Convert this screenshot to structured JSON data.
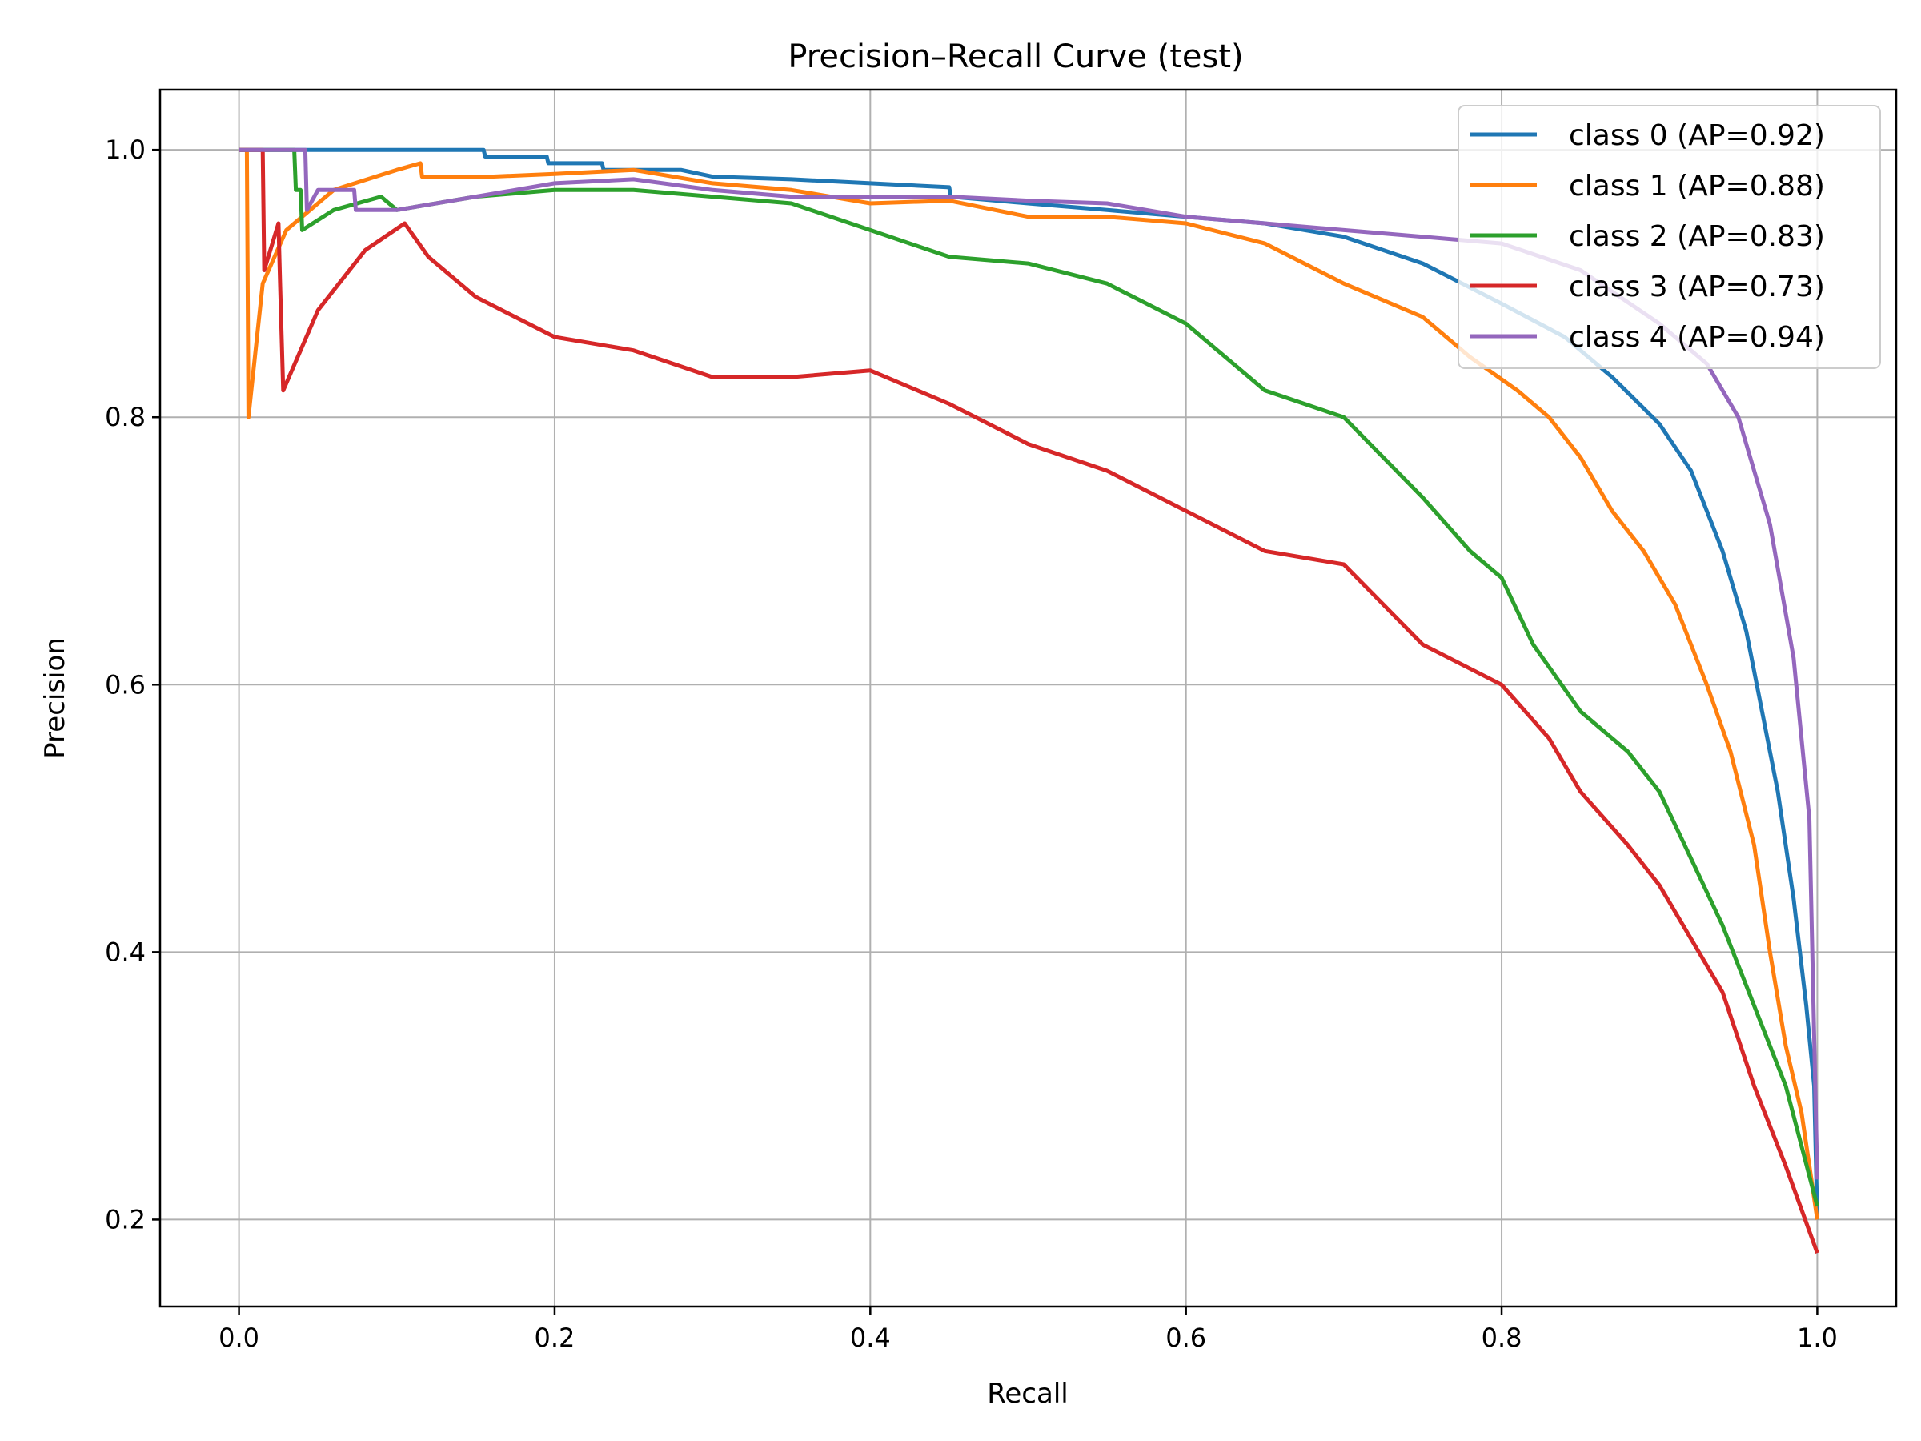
{
  "chart_data": {
    "type": "line",
    "title": "Precision–Recall Curve (test)",
    "xlabel": "Recall",
    "ylabel": "Precision",
    "xlim": [
      -0.05,
      1.05
    ],
    "ylim": [
      0.135,
      1.045
    ],
    "xticks": [
      0.0,
      0.2,
      0.4,
      0.6,
      0.8,
      1.0
    ],
    "xtick_labels": [
      "0.0",
      "0.2",
      "0.4",
      "0.6",
      "0.8",
      "1.0"
    ],
    "yticks": [
      0.2,
      0.4,
      0.6,
      0.8,
      1.0
    ],
    "ytick_labels": [
      "0.2",
      "0.4",
      "0.6",
      "0.8",
      "1.0"
    ],
    "grid": true,
    "legend_position": "top-right",
    "series": [
      {
        "name": "class 0 (AP=0.92)",
        "color": "#1f77b4",
        "points": [
          [
            0.0,
            1.0
          ],
          [
            0.05,
            1.0
          ],
          [
            0.1,
            1.0
          ],
          [
            0.155,
            1.0
          ],
          [
            0.156,
            0.995
          ],
          [
            0.195,
            0.995
          ],
          [
            0.196,
            0.99
          ],
          [
            0.23,
            0.99
          ],
          [
            0.231,
            0.985
          ],
          [
            0.28,
            0.985
          ],
          [
            0.3,
            0.98
          ],
          [
            0.35,
            0.978
          ],
          [
            0.4,
            0.975
          ],
          [
            0.45,
            0.972
          ],
          [
            0.451,
            0.965
          ],
          [
            0.5,
            0.96
          ],
          [
            0.55,
            0.955
          ],
          [
            0.6,
            0.95
          ],
          [
            0.65,
            0.945
          ],
          [
            0.7,
            0.935
          ],
          [
            0.75,
            0.915
          ],
          [
            0.8,
            0.885
          ],
          [
            0.84,
            0.86
          ],
          [
            0.87,
            0.83
          ],
          [
            0.9,
            0.795
          ],
          [
            0.92,
            0.76
          ],
          [
            0.94,
            0.7
          ],
          [
            0.955,
            0.64
          ],
          [
            0.965,
            0.58
          ],
          [
            0.975,
            0.52
          ],
          [
            0.985,
            0.44
          ],
          [
            0.993,
            0.36
          ],
          [
            0.998,
            0.3
          ],
          [
            1.0,
            0.2
          ]
        ]
      },
      {
        "name": "class 1 (AP=0.88)",
        "color": "#ff7f0e",
        "points": [
          [
            0.0,
            1.0
          ],
          [
            0.005,
            1.0
          ],
          [
            0.006,
            0.8
          ],
          [
            0.015,
            0.9
          ],
          [
            0.03,
            0.94
          ],
          [
            0.06,
            0.97
          ],
          [
            0.1,
            0.985
          ],
          [
            0.115,
            0.99
          ],
          [
            0.116,
            0.98
          ],
          [
            0.16,
            0.98
          ],
          [
            0.2,
            0.982
          ],
          [
            0.25,
            0.985
          ],
          [
            0.3,
            0.975
          ],
          [
            0.35,
            0.97
          ],
          [
            0.4,
            0.96
          ],
          [
            0.45,
            0.962
          ],
          [
            0.5,
            0.95
          ],
          [
            0.55,
            0.95
          ],
          [
            0.6,
            0.945
          ],
          [
            0.65,
            0.93
          ],
          [
            0.7,
            0.9
          ],
          [
            0.75,
            0.875
          ],
          [
            0.78,
            0.845
          ],
          [
            0.81,
            0.82
          ],
          [
            0.83,
            0.8
          ],
          [
            0.85,
            0.77
          ],
          [
            0.87,
            0.73
          ],
          [
            0.89,
            0.7
          ],
          [
            0.91,
            0.66
          ],
          [
            0.93,
            0.6
          ],
          [
            0.945,
            0.55
          ],
          [
            0.96,
            0.48
          ],
          [
            0.97,
            0.4
          ],
          [
            0.98,
            0.33
          ],
          [
            0.99,
            0.28
          ],
          [
            1.0,
            0.2
          ]
        ]
      },
      {
        "name": "class 2 (AP=0.83)",
        "color": "#2ca02c",
        "points": [
          [
            0.0,
            1.0
          ],
          [
            0.035,
            1.0
          ],
          [
            0.036,
            0.97
          ],
          [
            0.039,
            0.97
          ],
          [
            0.04,
            0.94
          ],
          [
            0.06,
            0.955
          ],
          [
            0.09,
            0.965
          ],
          [
            0.1,
            0.955
          ],
          [
            0.15,
            0.965
          ],
          [
            0.2,
            0.97
          ],
          [
            0.25,
            0.97
          ],
          [
            0.3,
            0.965
          ],
          [
            0.35,
            0.96
          ],
          [
            0.4,
            0.94
          ],
          [
            0.45,
            0.92
          ],
          [
            0.5,
            0.915
          ],
          [
            0.55,
            0.9
          ],
          [
            0.6,
            0.87
          ],
          [
            0.65,
            0.82
          ],
          [
            0.7,
            0.8
          ],
          [
            0.75,
            0.74
          ],
          [
            0.78,
            0.7
          ],
          [
            0.8,
            0.68
          ],
          [
            0.82,
            0.63
          ],
          [
            0.85,
            0.58
          ],
          [
            0.88,
            0.55
          ],
          [
            0.9,
            0.52
          ],
          [
            0.92,
            0.47
          ],
          [
            0.94,
            0.42
          ],
          [
            0.96,
            0.36
          ],
          [
            0.98,
            0.3
          ],
          [
            1.0,
            0.21
          ]
        ]
      },
      {
        "name": "class 3 (AP=0.73)",
        "color": "#d62728",
        "points": [
          [
            0.0,
            1.0
          ],
          [
            0.015,
            1.0
          ],
          [
            0.016,
            0.91
          ],
          [
            0.025,
            0.945
          ],
          [
            0.026,
            0.9
          ],
          [
            0.028,
            0.82
          ],
          [
            0.05,
            0.88
          ],
          [
            0.08,
            0.925
          ],
          [
            0.105,
            0.945
          ],
          [
            0.12,
            0.92
          ],
          [
            0.15,
            0.89
          ],
          [
            0.2,
            0.86
          ],
          [
            0.25,
            0.85
          ],
          [
            0.3,
            0.83
          ],
          [
            0.35,
            0.83
          ],
          [
            0.4,
            0.835
          ],
          [
            0.45,
            0.81
          ],
          [
            0.5,
            0.78
          ],
          [
            0.55,
            0.76
          ],
          [
            0.6,
            0.73
          ],
          [
            0.65,
            0.7
          ],
          [
            0.7,
            0.69
          ],
          [
            0.75,
            0.63
          ],
          [
            0.8,
            0.6
          ],
          [
            0.83,
            0.56
          ],
          [
            0.85,
            0.52
          ],
          [
            0.88,
            0.48
          ],
          [
            0.9,
            0.45
          ],
          [
            0.92,
            0.41
          ],
          [
            0.94,
            0.37
          ],
          [
            0.96,
            0.3
          ],
          [
            0.98,
            0.24
          ],
          [
            1.0,
            0.175
          ]
        ]
      },
      {
        "name": "class 4 (AP=0.94)",
        "color": "#9467bd",
        "points": [
          [
            0.0,
            1.0
          ],
          [
            0.042,
            1.0
          ],
          [
            0.043,
            0.955
          ],
          [
            0.05,
            0.97
          ],
          [
            0.073,
            0.97
          ],
          [
            0.074,
            0.955
          ],
          [
            0.1,
            0.955
          ],
          [
            0.15,
            0.965
          ],
          [
            0.2,
            0.975
          ],
          [
            0.25,
            0.978
          ],
          [
            0.3,
            0.97
          ],
          [
            0.35,
            0.965
          ],
          [
            0.4,
            0.965
          ],
          [
            0.45,
            0.965
          ],
          [
            0.5,
            0.962
          ],
          [
            0.55,
            0.96
          ],
          [
            0.6,
            0.95
          ],
          [
            0.65,
            0.945
          ],
          [
            0.7,
            0.94
          ],
          [
            0.75,
            0.935
          ],
          [
            0.8,
            0.93
          ],
          [
            0.85,
            0.91
          ],
          [
            0.9,
            0.87
          ],
          [
            0.93,
            0.84
          ],
          [
            0.95,
            0.8
          ],
          [
            0.97,
            0.72
          ],
          [
            0.985,
            0.62
          ],
          [
            0.995,
            0.5
          ],
          [
            1.0,
            0.23
          ]
        ]
      }
    ]
  }
}
